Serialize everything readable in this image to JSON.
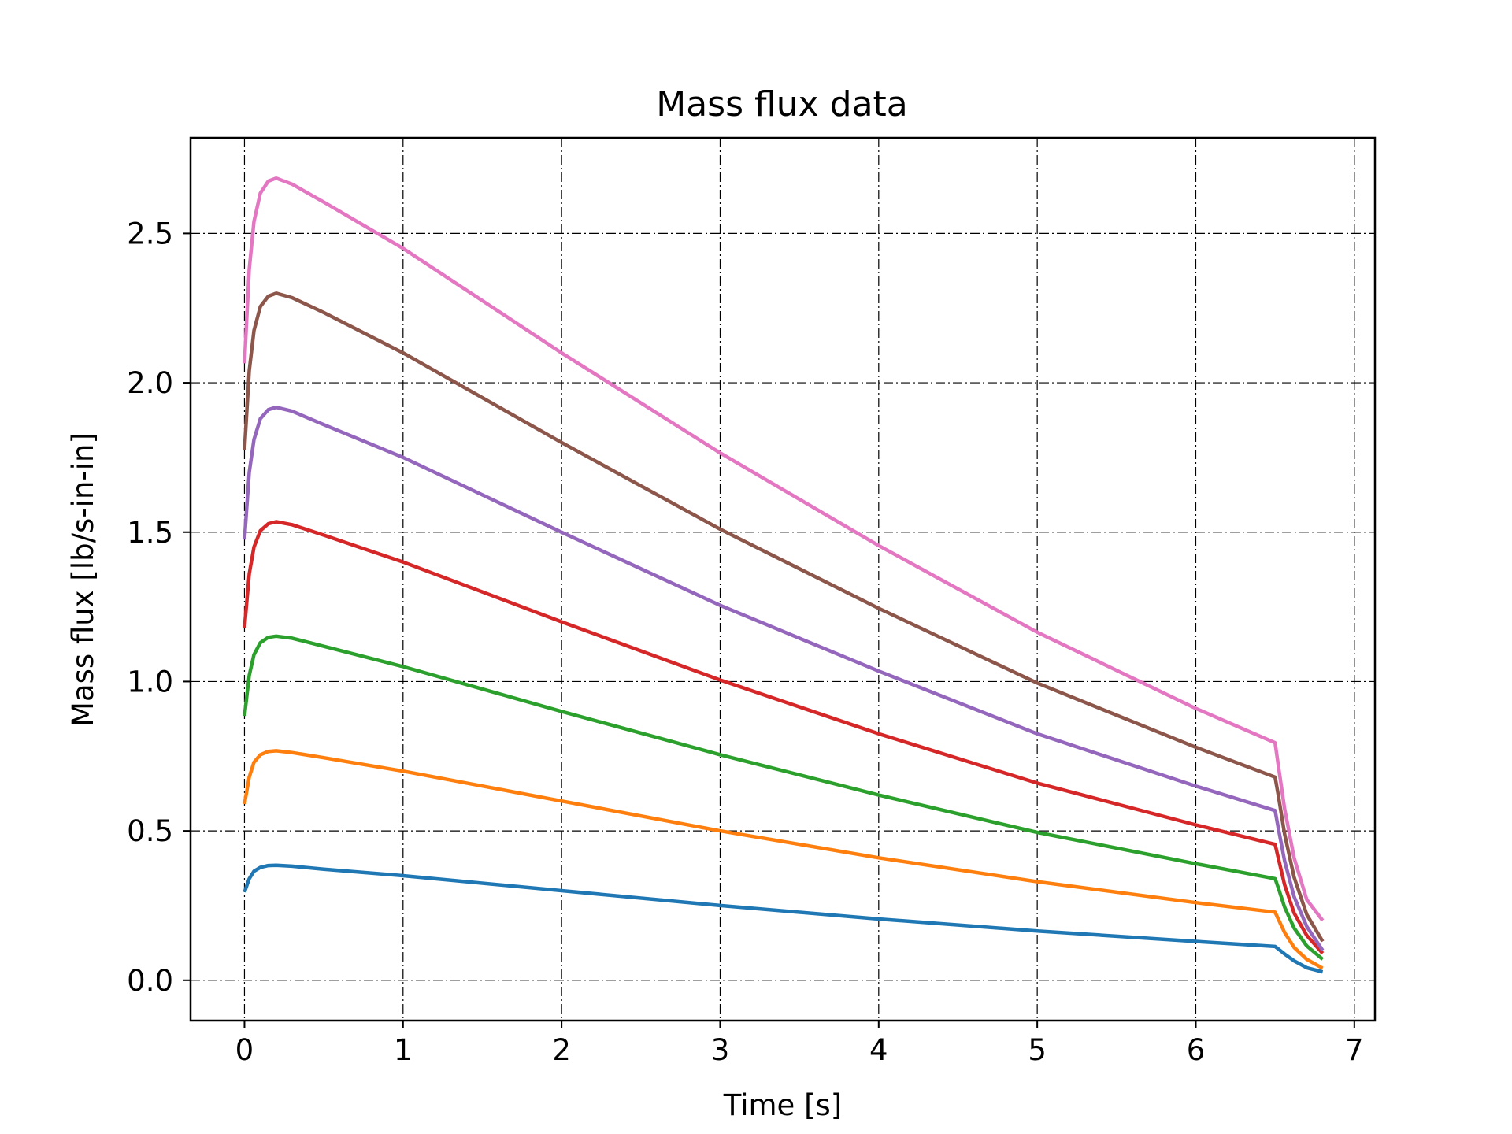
{
  "chart_data": {
    "type": "line",
    "title": "Mass flux data",
    "xlabel": "Time [s]",
    "ylabel": "Mass flux [lb/s-in-in]",
    "xlim": [
      -0.34,
      7.13
    ],
    "ylim": [
      -0.135,
      2.82
    ],
    "xticks": [
      0,
      1,
      2,
      3,
      4,
      5,
      6,
      7
    ],
    "xtick_labels": [
      "0",
      "1",
      "2",
      "3",
      "4",
      "5",
      "6",
      "7"
    ],
    "yticks": [
      0.0,
      0.5,
      1.0,
      1.5,
      2.0,
      2.5
    ],
    "ytick_labels": [
      "0.0",
      "0.5",
      "1.0",
      "1.5",
      "2.0",
      "2.5"
    ],
    "grid": true,
    "series": [
      {
        "color": "#1f77b4",
        "x": [
          0,
          0.03,
          0.06,
          0.1,
          0.15,
          0.2,
          0.3,
          0.5,
          1,
          2,
          3,
          4,
          5,
          6,
          6.5,
          6.52,
          6.56,
          6.62,
          6.7,
          6.8
        ],
        "y": [
          0.295,
          0.34,
          0.365,
          0.378,
          0.384,
          0.385,
          0.382,
          0.372,
          0.35,
          0.3,
          0.25,
          0.205,
          0.165,
          0.13,
          0.113,
          0.105,
          0.088,
          0.065,
          0.042,
          0.028
        ]
      },
      {
        "color": "#ff7f0e",
        "x": [
          0,
          0.03,
          0.06,
          0.1,
          0.15,
          0.2,
          0.3,
          0.5,
          1,
          2,
          3,
          4,
          5,
          6,
          6.5,
          6.52,
          6.56,
          6.62,
          6.7,
          6.8
        ],
        "y": [
          0.59,
          0.68,
          0.73,
          0.755,
          0.766,
          0.768,
          0.762,
          0.745,
          0.7,
          0.6,
          0.5,
          0.41,
          0.33,
          0.26,
          0.228,
          0.205,
          0.16,
          0.11,
          0.07,
          0.04
        ]
      },
      {
        "color": "#2ca02c",
        "x": [
          0,
          0.03,
          0.06,
          0.1,
          0.15,
          0.2,
          0.3,
          0.5,
          1,
          2,
          3,
          4,
          5,
          6,
          6.5,
          6.52,
          6.56,
          6.62,
          6.7,
          6.8
        ],
        "y": [
          0.885,
          1.02,
          1.09,
          1.13,
          1.148,
          1.152,
          1.145,
          1.118,
          1.05,
          0.9,
          0.755,
          0.62,
          0.495,
          0.39,
          0.34,
          0.31,
          0.245,
          0.175,
          0.115,
          0.07
        ]
      },
      {
        "color": "#d62728",
        "x": [
          0,
          0.03,
          0.06,
          0.1,
          0.15,
          0.2,
          0.3,
          0.5,
          1,
          2,
          3,
          4,
          5,
          6,
          6.5,
          6.52,
          6.56,
          6.62,
          6.7,
          6.8
        ],
        "y": [
          1.18,
          1.36,
          1.45,
          1.505,
          1.528,
          1.535,
          1.525,
          1.49,
          1.4,
          1.2,
          1.005,
          0.825,
          0.66,
          0.52,
          0.455,
          0.41,
          0.32,
          0.225,
          0.15,
          0.09
        ]
      },
      {
        "color": "#9467bd",
        "x": [
          0,
          0.03,
          0.06,
          0.1,
          0.15,
          0.2,
          0.3,
          0.5,
          1,
          2,
          3,
          4,
          5,
          6,
          6.5,
          6.52,
          6.56,
          6.62,
          6.7,
          6.8
        ],
        "y": [
          1.475,
          1.7,
          1.81,
          1.88,
          1.91,
          1.918,
          1.905,
          1.86,
          1.75,
          1.5,
          1.255,
          1.035,
          0.825,
          0.65,
          0.568,
          0.51,
          0.4,
          0.28,
          0.18,
          0.1
        ]
      },
      {
        "color": "#8c564b",
        "x": [
          0,
          0.03,
          0.06,
          0.1,
          0.15,
          0.2,
          0.3,
          0.5,
          1,
          2,
          3,
          4,
          5,
          6,
          6.5,
          6.52,
          6.56,
          6.62,
          6.7,
          6.8
        ],
        "y": [
          1.775,
          2.04,
          2.175,
          2.255,
          2.29,
          2.3,
          2.285,
          2.235,
          2.1,
          1.8,
          1.51,
          1.245,
          0.995,
          0.78,
          0.68,
          0.62,
          0.49,
          0.345,
          0.22,
          0.13
        ]
      },
      {
        "color": "#e377c2",
        "x": [
          0,
          0.03,
          0.06,
          0.1,
          0.15,
          0.2,
          0.3,
          0.5,
          1,
          2,
          3,
          4,
          5,
          6,
          6.5,
          6.52,
          6.56,
          6.62,
          6.7,
          6.8
        ],
        "y": [
          2.065,
          2.38,
          2.54,
          2.635,
          2.675,
          2.685,
          2.665,
          2.605,
          2.45,
          2.1,
          1.765,
          1.455,
          1.165,
          0.91,
          0.795,
          0.72,
          0.575,
          0.41,
          0.27,
          0.2
        ]
      }
    ]
  }
}
